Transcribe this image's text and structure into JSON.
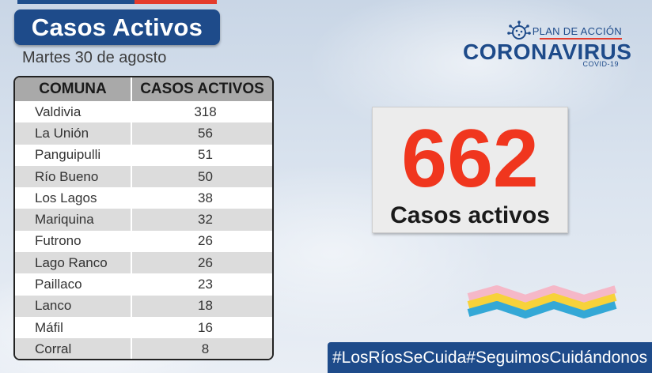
{
  "header": {
    "title": "Casos Activos",
    "date": "Martes 30 de agosto"
  },
  "logo": {
    "plan": "PLAN DE ACCIÓN",
    "name": "CORONAVIRUS",
    "sub": "COVID-19"
  },
  "table": {
    "headers": [
      "COMUNA",
      "CASOS ACTIVOS"
    ],
    "rows": [
      {
        "comuna": "Valdivia",
        "casos": "318"
      },
      {
        "comuna": "La Unión",
        "casos": "56"
      },
      {
        "comuna": "Panguipulli",
        "casos": "51"
      },
      {
        "comuna": "Río Bueno",
        "casos": "50"
      },
      {
        "comuna": "Los Lagos",
        "casos": "38"
      },
      {
        "comuna": "Mariquina",
        "casos": "32"
      },
      {
        "comuna": "Futrono",
        "casos": "26"
      },
      {
        "comuna": "Lago Ranco",
        "casos": "26"
      },
      {
        "comuna": "Paillaco",
        "casos": "23"
      },
      {
        "comuna": "Lanco",
        "casos": "18"
      },
      {
        "comuna": "Máfil",
        "casos": "16"
      },
      {
        "comuna": "Corral",
        "casos": "8"
      }
    ]
  },
  "total": {
    "value": "662",
    "label": "Casos activos"
  },
  "hashtags": [
    "#LosRíosSeCuida",
    "#SeguimosCuidándonos"
  ],
  "colors": {
    "brand_blue": "#1e4b8a",
    "accent_red": "#f0361e",
    "wave": [
      "#f5b8c8",
      "#f7d23a",
      "#34a8d6"
    ]
  }
}
